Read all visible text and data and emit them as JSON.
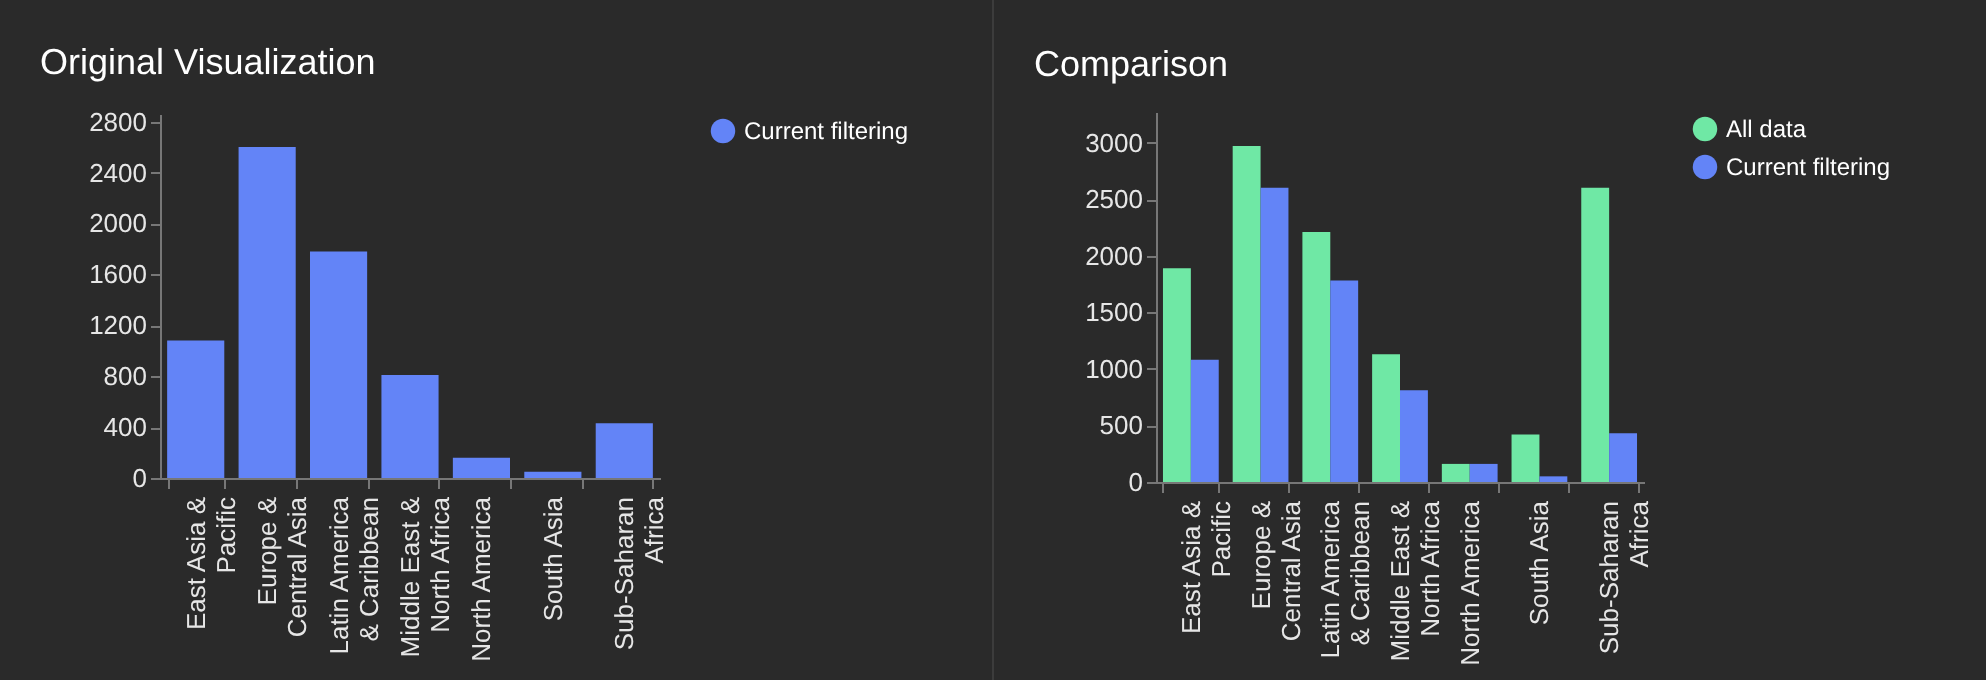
{
  "chart_data": [
    {
      "type": "bar",
      "title": "Original Visualization",
      "categories": [
        "East Asia & Pacific",
        "Europe & Central Asia",
        "Latin America & Caribbean",
        "Middle East & North Africa",
        "North America",
        "South Asia",
        "Sub-Saharan Africa"
      ],
      "series": [
        {
          "name": "Current filtering",
          "color": "#6384f7",
          "values": [
            1080,
            2600,
            1780,
            810,
            160,
            50,
            430
          ]
        }
      ],
      "ylim": [
        0,
        2860
      ],
      "yticks": [
        0,
        400,
        800,
        1200,
        1600,
        2000,
        2400,
        2800
      ],
      "grid": false,
      "legend": "top right"
    },
    {
      "type": "bar",
      "title": "Comparison",
      "categories": [
        "East Asia & Pacific",
        "Europe & Central Asia",
        "Latin America & Caribbean",
        "Middle East & North Africa",
        "North America",
        "South Asia",
        "Sub-Saharan Africa"
      ],
      "series": [
        {
          "name": "All data",
          "color": "#6fe8a5",
          "values": [
            1890,
            2970,
            2210,
            1130,
            160,
            420,
            2600
          ]
        },
        {
          "name": "Current filtering",
          "color": "#6384f7",
          "values": [
            1080,
            2600,
            1780,
            810,
            160,
            50,
            430
          ]
        }
      ],
      "ylim": [
        0,
        3270
      ],
      "yticks": [
        0,
        500,
        1000,
        1500,
        2000,
        2500,
        3000
      ],
      "grid": false,
      "legend": "top right"
    }
  ]
}
